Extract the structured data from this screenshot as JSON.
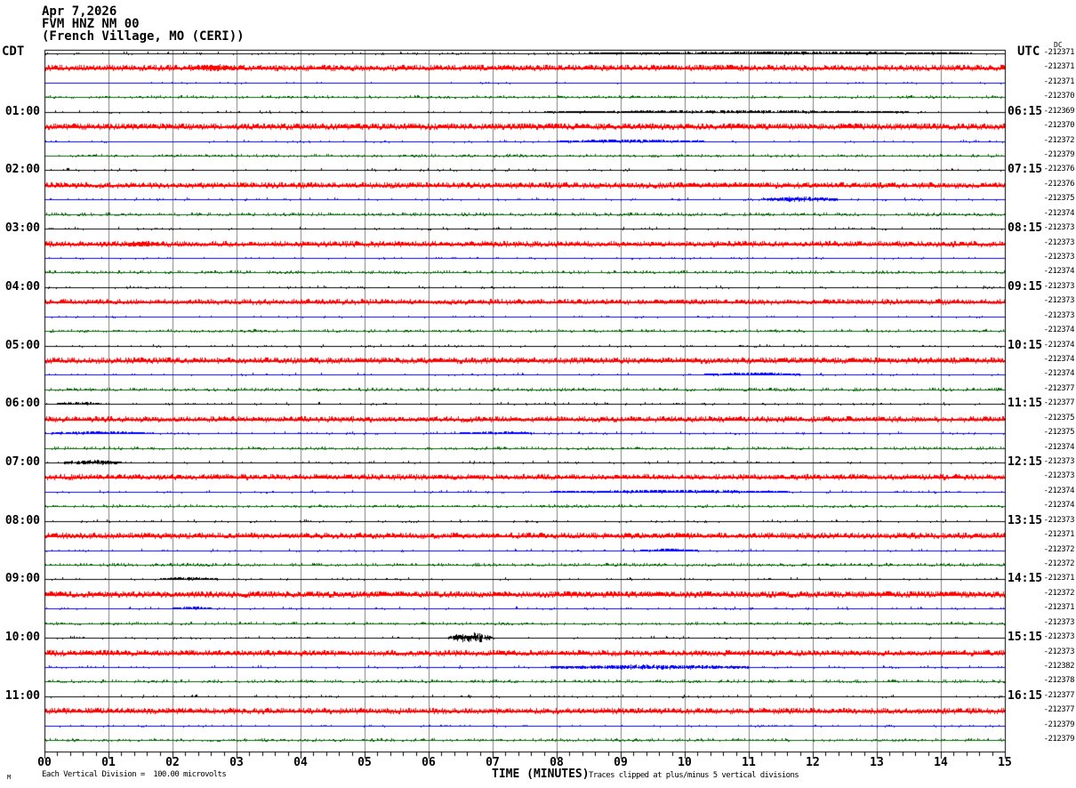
{
  "header": {
    "date": "Apr 7,2026",
    "station": "FVM HNZ NM 00",
    "station_name": "(French Village, MO (CERI))"
  },
  "axes": {
    "left_label": "CDT",
    "right_label": "UTC",
    "dc_tag": "DC"
  },
  "x_axis": {
    "title": "TIME (MINUTES)",
    "tick_labels": [
      "00",
      "01",
      "02",
      "03",
      "04",
      "05",
      "06",
      "07",
      "08",
      "09",
      "10",
      "11",
      "12",
      "13",
      "14",
      "15"
    ]
  },
  "footer": {
    "left_note": "Each Vertical Division =  100.00 microvolts",
    "right_note": "Traces clipped at plus/minus 5 vertical divisions",
    "corner_mark": "M"
  },
  "chart_data": {
    "type": "line",
    "kind": "helicorder-seismogram",
    "title": "FVM HNZ NM 00 (French Village, MO (CERI)) Apr 7,2026",
    "xlabel": "TIME (MINUTES)",
    "x_range": [
      0,
      15
    ],
    "grid": true,
    "colors": {
      "black": "#000000",
      "red": "#ff0000",
      "blue": "#0000ff",
      "green": "#006400",
      "grid": "#808080",
      "frame": "#000000"
    },
    "noise_model": {
      "black": {
        "density": 0.1,
        "amp": 1.2,
        "lw": 1
      },
      "red": {
        "density": 0.55,
        "amp": 1.7,
        "lw": 2
      },
      "blue": {
        "density": 0.1,
        "amp": 1.2,
        "lw": 1
      },
      "green": {
        "density": 0.32,
        "amp": 1.2,
        "lw": 1
      }
    },
    "rows": [
      {
        "color": "black",
        "dc": -212371,
        "dc_tag": true,
        "noise": 1.0,
        "events": [
          {
            "t0": 8.5,
            "t1": 14.5,
            "amp": 1.2
          }
        ]
      },
      {
        "color": "red",
        "dc": -212371,
        "noise": 1.6,
        "events": [
          {
            "t0": 2.3,
            "t1": 3.0,
            "amp": 3
          }
        ]
      },
      {
        "color": "blue",
        "dc": -212371,
        "noise": 0.6
      },
      {
        "color": "green",
        "dc": -212370,
        "noise": 1.0
      },
      {
        "color": "black",
        "dc": -212369,
        "cdt": "01:00",
        "utc": "06:15",
        "noise": 1.0,
        "events": [
          {
            "t0": 7.8,
            "t1": 13.5,
            "amp": 1.2
          }
        ]
      },
      {
        "color": "red",
        "dc": -212370,
        "noise": 1.7
      },
      {
        "color": "blue",
        "dc": -212372,
        "noise": 1.0,
        "events": [
          {
            "t0": 8.0,
            "t1": 10.3,
            "amp": 1.5
          }
        ]
      },
      {
        "color": "green",
        "dc": -212379,
        "noise": 1.0
      },
      {
        "color": "black",
        "dc": -212376,
        "cdt": "02:00",
        "utc": "07:15",
        "noise": 1.0
      },
      {
        "color": "red",
        "dc": -212376,
        "noise": 1.5
      },
      {
        "color": "blue",
        "dc": -212375,
        "noise": 1.0,
        "events": [
          {
            "t0": 11.2,
            "t1": 12.4,
            "amp": 2
          }
        ]
      },
      {
        "color": "green",
        "dc": -212374,
        "noise": 1.3
      },
      {
        "color": "black",
        "dc": -212373,
        "cdt": "03:00",
        "utc": "08:15",
        "noise": 1.0
      },
      {
        "color": "red",
        "dc": -212373,
        "noise": 1.4,
        "events": [
          {
            "t0": 1.3,
            "t1": 1.8,
            "amp": 2
          }
        ]
      },
      {
        "color": "blue",
        "dc": -212373,
        "noise": 0.8
      },
      {
        "color": "green",
        "dc": -212374,
        "noise": 1.2
      },
      {
        "color": "black",
        "dc": -212373,
        "cdt": "04:00",
        "utc": "09:15",
        "noise": 1.0
      },
      {
        "color": "red",
        "dc": -212373,
        "noise": 1.3
      },
      {
        "color": "blue",
        "dc": -212373,
        "noise": 0.8
      },
      {
        "color": "green",
        "dc": -212374,
        "noise": 1.0
      },
      {
        "color": "black",
        "dc": -212374,
        "cdt": "05:00",
        "utc": "10:15",
        "noise": 1.0
      },
      {
        "color": "red",
        "dc": -212374,
        "noise": 1.6
      },
      {
        "color": "blue",
        "dc": -212374,
        "noise": 1.0,
        "events": [
          {
            "t0": 10.3,
            "t1": 11.8,
            "amp": 1.5
          }
        ]
      },
      {
        "color": "green",
        "dc": -212377,
        "noise": 1.3
      },
      {
        "color": "black",
        "dc": -212377,
        "cdt": "06:00",
        "utc": "11:15",
        "noise": 1.0,
        "events": [
          {
            "t0": 0.2,
            "t1": 0.9,
            "amp": 1.2
          }
        ]
      },
      {
        "color": "red",
        "dc": -212375,
        "noise": 1.4
      },
      {
        "color": "blue",
        "dc": -212375,
        "noise": 1.0,
        "events": [
          {
            "t0": 0.1,
            "t1": 1.7,
            "amp": 1.5
          },
          {
            "t0": 6.5,
            "t1": 7.6,
            "amp": 1.2
          }
        ]
      },
      {
        "color": "green",
        "dc": -212374,
        "noise": 1.0
      },
      {
        "color": "black",
        "dc": -212373,
        "cdt": "07:00",
        "utc": "12:15",
        "noise": 1.0,
        "events": [
          {
            "t0": 0.3,
            "t1": 1.2,
            "amp": 2
          }
        ]
      },
      {
        "color": "red",
        "dc": -212373,
        "noise": 1.4
      },
      {
        "color": "blue",
        "dc": -212374,
        "noise": 1.0,
        "events": [
          {
            "t0": 7.9,
            "t1": 11.6,
            "amp": 1.3
          }
        ]
      },
      {
        "color": "green",
        "dc": -212374,
        "noise": 1.0
      },
      {
        "color": "black",
        "dc": -212373,
        "cdt": "08:00",
        "utc": "13:15",
        "noise": 1.0
      },
      {
        "color": "red",
        "dc": -212371,
        "noise": 1.5
      },
      {
        "color": "blue",
        "dc": -212372,
        "noise": 1.0,
        "events": [
          {
            "t0": 9.3,
            "t1": 10.2,
            "amp": 1.3
          }
        ]
      },
      {
        "color": "green",
        "dc": -212372,
        "noise": 1.3
      },
      {
        "color": "black",
        "dc": -212371,
        "cdt": "09:00",
        "utc": "14:15",
        "noise": 1.0,
        "events": [
          {
            "t0": 1.8,
            "t1": 2.7,
            "amp": 1.5
          }
        ]
      },
      {
        "color": "red",
        "dc": -212372,
        "noise": 1.7
      },
      {
        "color": "blue",
        "dc": -212371,
        "noise": 1.0,
        "events": [
          {
            "t0": 2.0,
            "t1": 2.6,
            "amp": 1.2
          }
        ]
      },
      {
        "color": "green",
        "dc": -212373,
        "noise": 1.0
      },
      {
        "color": "black",
        "dc": -212373,
        "cdt": "10:00",
        "utc": "15:15",
        "noise": 1.0,
        "events": [
          {
            "t0": 6.3,
            "t1": 7.0,
            "amp": 5
          }
        ]
      },
      {
        "color": "red",
        "dc": -212373,
        "noise": 1.5
      },
      {
        "color": "blue",
        "dc": -212382,
        "noise": 1.1,
        "events": [
          {
            "t0": 7.9,
            "t1": 11.0,
            "amp": 1.8
          }
        ]
      },
      {
        "color": "green",
        "dc": -212378,
        "noise": 1.2
      },
      {
        "color": "black",
        "dc": -212377,
        "cdt": "11:00",
        "utc": "16:15",
        "noise": 1.0
      },
      {
        "color": "red",
        "dc": -212377,
        "noise": 1.5
      },
      {
        "color": "blue",
        "dc": -212379,
        "noise": 0.8
      },
      {
        "color": "green",
        "dc": -212379,
        "noise": 1.0
      }
    ]
  }
}
